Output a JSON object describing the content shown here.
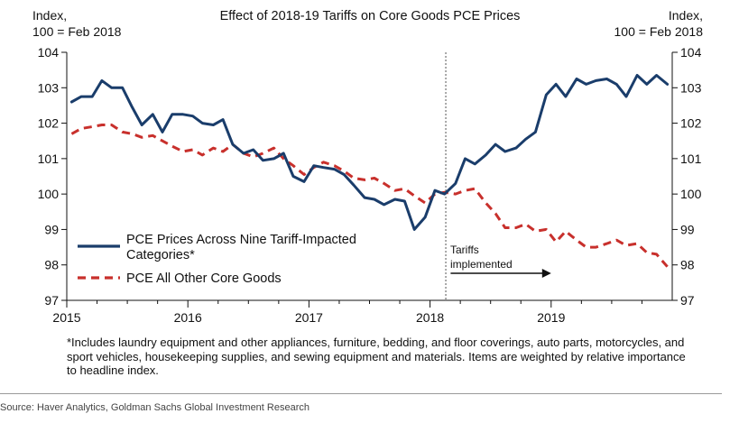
{
  "chart_data": {
    "type": "line",
    "title": "Effect of 2018-19 Tariffs on Core Goods PCE Prices",
    "left_axis_label": [
      "Index,",
      "100 = Feb 2018"
    ],
    "right_axis_label": [
      "Index,",
      "100 = Feb 2018"
    ],
    "ylim": [
      97,
      104
    ],
    "yticks": [
      "97",
      "98",
      "99",
      "100",
      "101",
      "102",
      "103",
      "104"
    ],
    "xlim": [
      2015,
      2020
    ],
    "xticks": [
      {
        "label": "2015",
        "value": 2015
      },
      {
        "label": "2016",
        "value": 2016
      },
      {
        "label": "2017",
        "value": 2017
      },
      {
        "label": "2018",
        "value": 2018
      },
      {
        "label": "2019",
        "value": 2019
      }
    ],
    "vline": {
      "x": 2018.13,
      "style": "dotted"
    },
    "annotation": {
      "lines": [
        "Tariffs",
        "implemented"
      ],
      "arrow_from": 2018.17,
      "arrow_to": 2019.0
    },
    "series": [
      {
        "name": "PCE Prices Across Nine Tariff-Impacted Categories*",
        "legend_lines": [
          "PCE Prices Across Nine Tariff-Impacted",
          "Categories*"
        ],
        "color": "#1a3d6b",
        "style": "solid",
        "x": [
          2015.04,
          2015.12,
          2015.21,
          2015.29,
          2015.37,
          2015.46,
          2015.54,
          2015.62,
          2015.71,
          2015.79,
          2015.87,
          2015.96,
          2016.04,
          2016.12,
          2016.21,
          2016.29,
          2016.37,
          2016.46,
          2016.54,
          2016.62,
          2016.71,
          2016.79,
          2016.87,
          2016.96,
          2017.04,
          2017.12,
          2017.21,
          2017.29,
          2017.37,
          2017.46,
          2017.54,
          2017.62,
          2017.71,
          2017.79,
          2017.87,
          2017.96,
          2018.04,
          2018.12,
          2018.21,
          2018.29,
          2018.37,
          2018.46,
          2018.54,
          2018.62,
          2018.71,
          2018.79,
          2018.87,
          2018.96,
          2019.04,
          2019.12,
          2019.21,
          2019.29,
          2019.37,
          2019.46,
          2019.54,
          2019.62,
          2019.71,
          2019.79,
          2019.87,
          2019.96
        ],
        "values": [
          102.6,
          102.75,
          102.75,
          103.2,
          103.0,
          103.0,
          102.45,
          101.95,
          102.25,
          101.75,
          102.25,
          102.25,
          102.2,
          102.0,
          101.95,
          102.1,
          101.4,
          101.15,
          101.25,
          100.95,
          101.0,
          101.15,
          100.5,
          100.35,
          100.8,
          100.75,
          100.7,
          100.55,
          100.25,
          99.9,
          99.85,
          99.7,
          99.85,
          99.8,
          99.0,
          99.35,
          100.1,
          100.0,
          100.3,
          101.0,
          100.85,
          101.1,
          101.4,
          101.2,
          101.3,
          101.55,
          101.75,
          102.8,
          103.1,
          102.75,
          103.25,
          103.1,
          103.2,
          103.25,
          103.1,
          102.75,
          103.35,
          103.1,
          103.35,
          103.1
        ]
      },
      {
        "name": "PCE All Other Core Goods",
        "legend_lines": [
          "PCE All Other Core Goods"
        ],
        "color": "#c8302c",
        "style": "dashed",
        "x": [
          2015.04,
          2015.12,
          2015.21,
          2015.29,
          2015.37,
          2015.46,
          2015.54,
          2015.62,
          2015.71,
          2015.79,
          2015.87,
          2015.96,
          2016.04,
          2016.12,
          2016.21,
          2016.29,
          2016.37,
          2016.46,
          2016.54,
          2016.62,
          2016.71,
          2016.79,
          2016.87,
          2016.96,
          2017.04,
          2017.12,
          2017.21,
          2017.29,
          2017.37,
          2017.46,
          2017.54,
          2017.62,
          2017.71,
          2017.79,
          2017.87,
          2017.96,
          2018.04,
          2018.12,
          2018.21,
          2018.29,
          2018.37,
          2018.46,
          2018.54,
          2018.62,
          2018.71,
          2018.79,
          2018.87,
          2018.96,
          2019.04,
          2019.12,
          2019.21,
          2019.29,
          2019.37,
          2019.46,
          2019.54,
          2019.62,
          2019.71,
          2019.79,
          2019.87,
          2019.96
        ],
        "values": [
          101.7,
          101.85,
          101.9,
          101.95,
          101.95,
          101.75,
          101.7,
          101.6,
          101.65,
          101.5,
          101.35,
          101.2,
          101.25,
          101.1,
          101.3,
          101.2,
          101.4,
          101.15,
          101.05,
          101.15,
          101.3,
          101.0,
          100.8,
          100.55,
          100.75,
          100.9,
          100.8,
          100.65,
          100.45,
          100.4,
          100.45,
          100.3,
          100.1,
          100.15,
          99.95,
          99.75,
          100.0,
          100.05,
          100.0,
          100.1,
          100.15,
          99.75,
          99.45,
          99.05,
          99.05,
          99.15,
          98.95,
          99.0,
          98.65,
          98.95,
          98.7,
          98.5,
          98.5,
          98.6,
          98.7,
          98.55,
          98.6,
          98.35,
          98.3,
          97.95
        ]
      }
    ]
  },
  "footnote": "*Includes laundry equipment and other appliances, furniture, bedding, and floor coverings, auto parts, motorcycles, and sport vehicles, housekeeping supplies, and sewing equipment and materials. Items are weighted by relative importance to headline index.",
  "source": "Source: Haver Analytics, Goldman Sachs Global Investment Research"
}
